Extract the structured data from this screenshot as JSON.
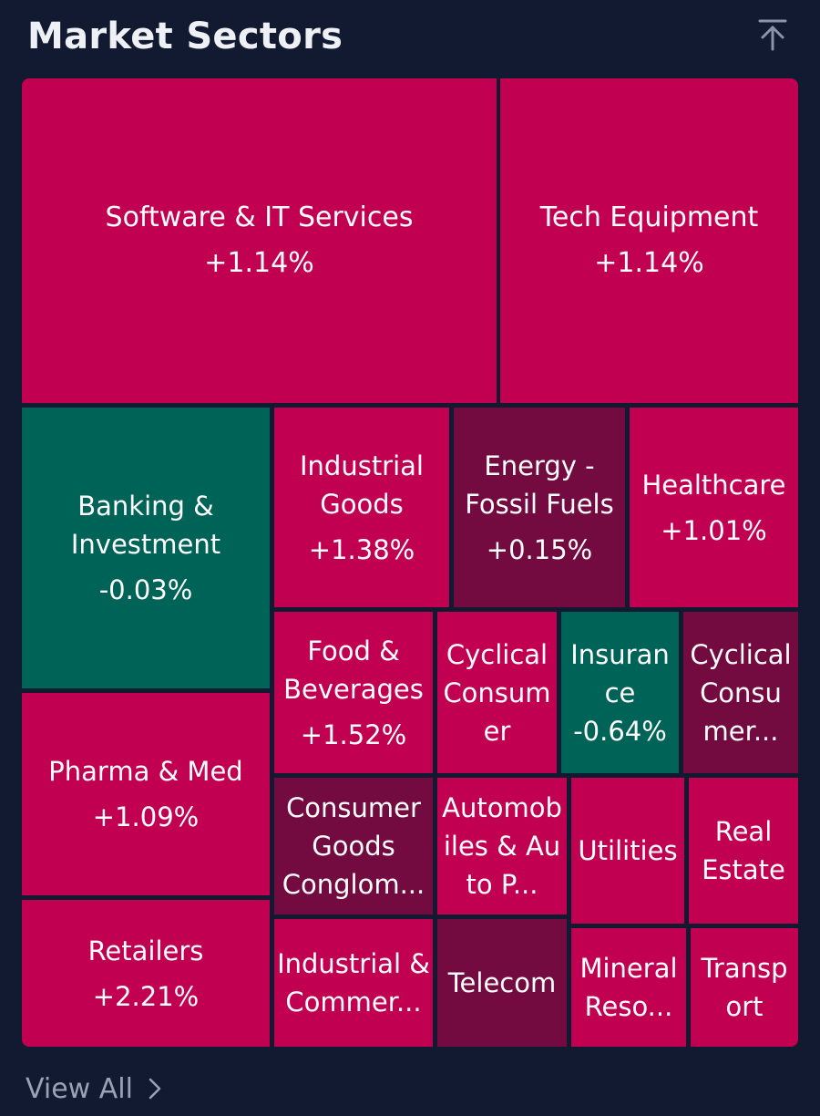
{
  "header": {
    "title": "Market Sectors"
  },
  "sectors": [
    {
      "name": "Software & IT Services",
      "change": "+1.14%"
    },
    {
      "name": "Tech Equipment",
      "change": "+1.14%"
    },
    {
      "name": "Banking & Investment",
      "change": "-0.03%"
    },
    {
      "name": "Industrial Goods",
      "change": "+1.38%"
    },
    {
      "name": "Energy - Fossil Fuels",
      "change": "+0.15%"
    },
    {
      "name": "Healthcare",
      "change": "+1.01%"
    },
    {
      "name": "Pharma & Med",
      "change": "+1.09%"
    },
    {
      "name": "Food & Beverages",
      "change": "+1.52%"
    },
    {
      "name": "Cyclical Consumer",
      "change": ""
    },
    {
      "name": "Insurance",
      "change": "-0.64%"
    },
    {
      "name": "Cyclical Consumer...",
      "change": ""
    },
    {
      "name": "Consumer Goods Conglom...",
      "change": ""
    },
    {
      "name": "Automobiles & Auto P...",
      "change": ""
    },
    {
      "name": "Utilities",
      "change": ""
    },
    {
      "name": "Real Estate",
      "change": ""
    },
    {
      "name": "Retailers",
      "change": "+2.21%"
    },
    {
      "name": "Industrial & Commer...",
      "change": ""
    },
    {
      "name": "Telecom",
      "change": ""
    },
    {
      "name": "Mineral Reso...",
      "change": ""
    },
    {
      "name": "Transport",
      "change": ""
    }
  ],
  "colors": {
    "up": "#c20052",
    "flat": "#730a40",
    "down": "#006358",
    "background": "#111a30"
  },
  "footer": {
    "view_all_label": "View All"
  }
}
